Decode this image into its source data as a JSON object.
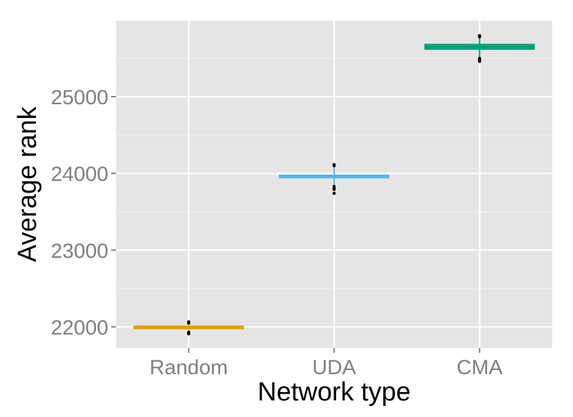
{
  "chart_data": {
    "type": "boxplot",
    "title": "",
    "xlabel": "Network type",
    "ylabel": "Average rank",
    "categories": [
      "Random",
      "UDA",
      "CMA"
    ],
    "ylim": [
      21725,
      25990
    ],
    "yticks": [
      22000,
      23000,
      24000,
      25000
    ],
    "ytick_labels": [
      "22000",
      "23000",
      "24000",
      "25000"
    ],
    "grid": true,
    "legend": "none",
    "background_color": "#e5e5e5",
    "series": [
      {
        "category": "Random",
        "color": "#e69f00",
        "median": 22000,
        "q1": 21995,
        "q3": 22005,
        "whisker_low": 21930,
        "whisker_high": 22060,
        "points": [
          22065,
          22050,
          21930,
          21920,
          21910
        ]
      },
      {
        "category": "UDA",
        "color": "#56b4e9",
        "median": 23960,
        "q1": 23945,
        "q3": 23975,
        "whisker_low": 23790,
        "whisker_high": 24110,
        "points": [
          24115,
          24100,
          23830,
          23805,
          23790,
          23740
        ]
      },
      {
        "category": "CMA",
        "color": "#009e73",
        "median": 25650,
        "q1": 25620,
        "q3": 25680,
        "whisker_low": 25500,
        "whisker_high": 25800,
        "points": [
          25795,
          25780,
          25500,
          25480,
          25460
        ]
      }
    ]
  }
}
